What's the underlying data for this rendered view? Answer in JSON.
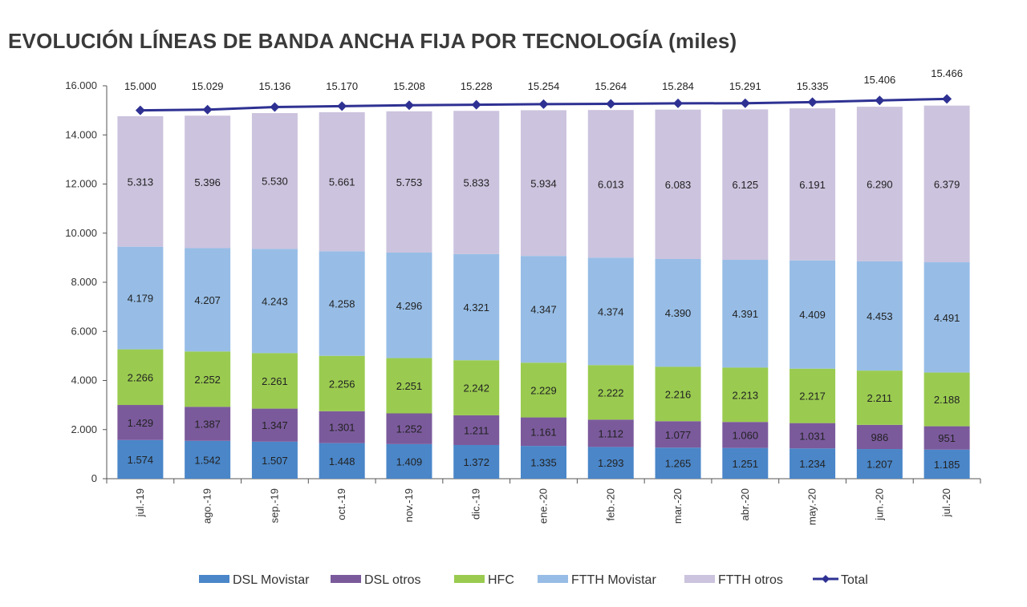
{
  "chart_data": {
    "type": "bar",
    "stacked": true,
    "title": "EVOLUCIÓN LÍNEAS DE BANDA ANCHA FIJA POR TECNOLOGÍA (miles)",
    "categories": [
      "jul.-19",
      "ago.-19",
      "sep.-19",
      "oct.-19",
      "nov.-19",
      "dic.-19",
      "ene.-20",
      "feb.-20",
      "mar.-20",
      "abr.-20",
      "may.-20",
      "jun.-20",
      "jul.-20"
    ],
    "series": [
      {
        "name": "DSL Movistar",
        "color": "#4a86c8",
        "values": [
          1574,
          1542,
          1507,
          1448,
          1409,
          1372,
          1335,
          1293,
          1265,
          1251,
          1234,
          1207,
          1185
        ],
        "labels": [
          "1.574",
          "1.542",
          "1.507",
          "1.448",
          "1.409",
          "1.372",
          "1.335",
          "1.293",
          "1.265",
          "1.251",
          "1.234",
          "1.207",
          "1.185"
        ]
      },
      {
        "name": "DSL otros",
        "color": "#7b5a9c",
        "values": [
          1429,
          1387,
          1347,
          1301,
          1252,
          1211,
          1161,
          1112,
          1077,
          1060,
          1031,
          986,
          951
        ],
        "labels": [
          "1.429",
          "1.387",
          "1.347",
          "1.301",
          "1.252",
          "1.211",
          "1.161",
          "1.112",
          "1.077",
          "1.060",
          "1.031",
          "986",
          "951"
        ]
      },
      {
        "name": "HFC",
        "color": "#9acb50",
        "values": [
          2266,
          2252,
          2261,
          2256,
          2251,
          2242,
          2229,
          2222,
          2216,
          2213,
          2217,
          2211,
          2188
        ],
        "labels": [
          "2.266",
          "2.252",
          "2.261",
          "2.256",
          "2.251",
          "2.242",
          "2.229",
          "2.222",
          "2.216",
          "2.213",
          "2.217",
          "2.211",
          "2.188"
        ]
      },
      {
        "name": "FTTH Movistar",
        "color": "#97bde6",
        "values": [
          4179,
          4207,
          4243,
          4258,
          4296,
          4321,
          4347,
          4374,
          4390,
          4391,
          4409,
          4453,
          4491
        ],
        "labels": [
          "4.179",
          "4.207",
          "4.243",
          "4.258",
          "4.296",
          "4.321",
          "4.347",
          "4.374",
          "4.390",
          "4.391",
          "4.409",
          "4.453",
          "4.491"
        ]
      },
      {
        "name": "FTTH otros",
        "color": "#ccc3de",
        "values": [
          5313,
          5396,
          5530,
          5661,
          5753,
          5833,
          5934,
          6013,
          6083,
          6125,
          6191,
          6290,
          6379
        ],
        "labels": [
          "5.313",
          "5.396",
          "5.530",
          "5.661",
          "5.753",
          "5.833",
          "5.934",
          "6.013",
          "6.083",
          "6.125",
          "6.191",
          "6.290",
          "6.379"
        ]
      }
    ],
    "total": {
      "name": "Total",
      "color": "#2e3192",
      "values": [
        15000,
        15029,
        15136,
        15170,
        15208,
        15228,
        15254,
        15264,
        15284,
        15291,
        15335,
        15406,
        15466
      ],
      "labels": [
        "15.000",
        "15.029",
        "15.136",
        "15.170",
        "15.208",
        "15.228",
        "15.254",
        "15.264",
        "15.284",
        "15.291",
        "15.335",
        "15.406",
        "15.466"
      ]
    },
    "ylim": [
      0,
      16000
    ],
    "yticks": [
      0,
      2000,
      4000,
      6000,
      8000,
      10000,
      12000,
      14000,
      16000
    ],
    "ytick_labels": [
      "0",
      "2.000",
      "4.000",
      "6.000",
      "8.000",
      "10.000",
      "12.000",
      "14.000",
      "16.000"
    ],
    "legend_position": "bottom",
    "grid": false
  }
}
